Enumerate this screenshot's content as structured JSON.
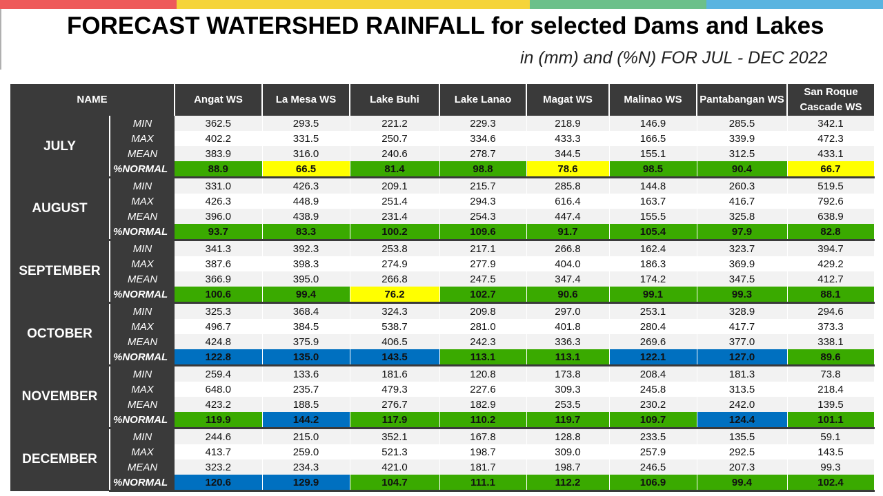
{
  "header": {
    "title": "FORECAST WATERSHED RAINFALL  for selected Dams and Lakes",
    "subtitle": "in (mm) and (%N) FOR JUL - DEC 2022",
    "bar_colors": [
      "#ee5a5a",
      "#f5d43a",
      "#f5d43a",
      "#6cc08a",
      "#5ab4e0"
    ]
  },
  "legend_colors": {
    "green": "#3aaa00",
    "yellow": "#ffff00",
    "blue": "#0070c0"
  },
  "table": {
    "name_header": "NAME",
    "columns": [
      "Angat WS",
      "La Mesa WS",
      "Lake Buhi",
      "Lake Lanao",
      "Magat WS",
      "Malinao WS",
      "Pantabangan WS",
      "San Roque Cascade WS"
    ],
    "stat_labels": [
      "MIN",
      "MAX",
      "MEAN",
      "%NORMAL"
    ],
    "months": [
      {
        "name": "JULY",
        "min": [
          "362.5",
          "293.5",
          "221.2",
          "229.3",
          "218.9",
          "146.9",
          "285.5",
          "342.1"
        ],
        "max": [
          "402.2",
          "331.5",
          "250.7",
          "334.6",
          "433.3",
          "166.5",
          "339.9",
          "472.3"
        ],
        "mean": [
          "383.9",
          "316.0",
          "240.6",
          "278.7",
          "344.5",
          "155.1",
          "312.5",
          "433.1"
        ],
        "normal": [
          "88.9",
          "66.5",
          "81.4",
          "98.8",
          "78.6",
          "98.5",
          "90.4",
          "66.7"
        ],
        "normal_colors": [
          "green",
          "yellow",
          "green",
          "green",
          "yellow",
          "green",
          "green",
          "yellow"
        ]
      },
      {
        "name": "AUGUST",
        "min": [
          "331.0",
          "426.3",
          "209.1",
          "215.7",
          "285.8",
          "144.8",
          "260.3",
          "519.5"
        ],
        "max": [
          "426.3",
          "448.9",
          "251.4",
          "294.3",
          "616.4",
          "163.7",
          "416.7",
          "792.6"
        ],
        "mean": [
          "396.0",
          "438.9",
          "231.4",
          "254.3",
          "447.4",
          "155.5",
          "325.8",
          "638.9"
        ],
        "normal": [
          "93.7",
          "83.3",
          "100.2",
          "109.6",
          "91.7",
          "105.4",
          "97.9",
          "82.8"
        ],
        "normal_colors": [
          "green",
          "green",
          "green",
          "green",
          "green",
          "green",
          "green",
          "green"
        ]
      },
      {
        "name": "SEPTEMBER",
        "min": [
          "341.3",
          "392.3",
          "253.8",
          "217.1",
          "266.8",
          "162.4",
          "323.7",
          "394.7"
        ],
        "max": [
          "387.6",
          "398.3",
          "274.9",
          "277.9",
          "404.0",
          "186.3",
          "369.9",
          "429.2"
        ],
        "mean": [
          "366.9",
          "395.0",
          "266.8",
          "247.5",
          "347.4",
          "174.2",
          "347.5",
          "412.7"
        ],
        "normal": [
          "100.6",
          "99.4",
          "76.2",
          "102.7",
          "90.6",
          "99.1",
          "99.3",
          "88.1"
        ],
        "normal_colors": [
          "green",
          "green",
          "yellow",
          "green",
          "green",
          "green",
          "green",
          "green"
        ]
      },
      {
        "name": "OCTOBER",
        "min": [
          "325.3",
          "368.4",
          "324.3",
          "209.8",
          "297.0",
          "253.1",
          "328.9",
          "294.6"
        ],
        "max": [
          "496.7",
          "384.5",
          "538.7",
          "281.0",
          "401.8",
          "280.4",
          "417.7",
          "373.3"
        ],
        "mean": [
          "424.8",
          "375.9",
          "406.5",
          "242.3",
          "336.3",
          "269.6",
          "377.0",
          "338.1"
        ],
        "normal": [
          "122.8",
          "135.0",
          "143.5",
          "113.1",
          "113.1",
          "122.1",
          "127.0",
          "89.6"
        ],
        "normal_colors": [
          "blue",
          "blue",
          "blue",
          "green",
          "green",
          "blue",
          "blue",
          "green"
        ]
      },
      {
        "name": "NOVEMBER",
        "min": [
          "259.4",
          "133.6",
          "181.6",
          "120.8",
          "173.8",
          "208.4",
          "181.3",
          "73.8"
        ],
        "max": [
          "648.0",
          "235.7",
          "479.3",
          "227.6",
          "309.3",
          "245.8",
          "313.5",
          "218.4"
        ],
        "mean": [
          "423.2",
          "188.5",
          "276.7",
          "182.9",
          "253.5",
          "230.2",
          "242.0",
          "139.5"
        ],
        "normal": [
          "119.9",
          "144.2",
          "117.9",
          "110.2",
          "119.7",
          "109.7",
          "124.4",
          "101.1"
        ],
        "normal_colors": [
          "green",
          "blue",
          "green",
          "green",
          "green",
          "green",
          "blue",
          "green"
        ]
      },
      {
        "name": "DECEMBER",
        "min": [
          "244.6",
          "215.0",
          "352.1",
          "167.8",
          "128.8",
          "233.5",
          "135.5",
          "59.1"
        ],
        "max": [
          "413.7",
          "259.0",
          "521.3",
          "198.7",
          "309.0",
          "257.9",
          "292.5",
          "143.5"
        ],
        "mean": [
          "323.2",
          "234.3",
          "421.0",
          "181.7",
          "198.7",
          "246.5",
          "207.3",
          "99.3"
        ],
        "normal": [
          "120.6",
          "129.9",
          "104.7",
          "111.1",
          "112.2",
          "106.9",
          "99.4",
          "102.4"
        ],
        "normal_colors": [
          "blue",
          "blue",
          "green",
          "green",
          "green",
          "green",
          "green",
          "green"
        ]
      }
    ]
  }
}
